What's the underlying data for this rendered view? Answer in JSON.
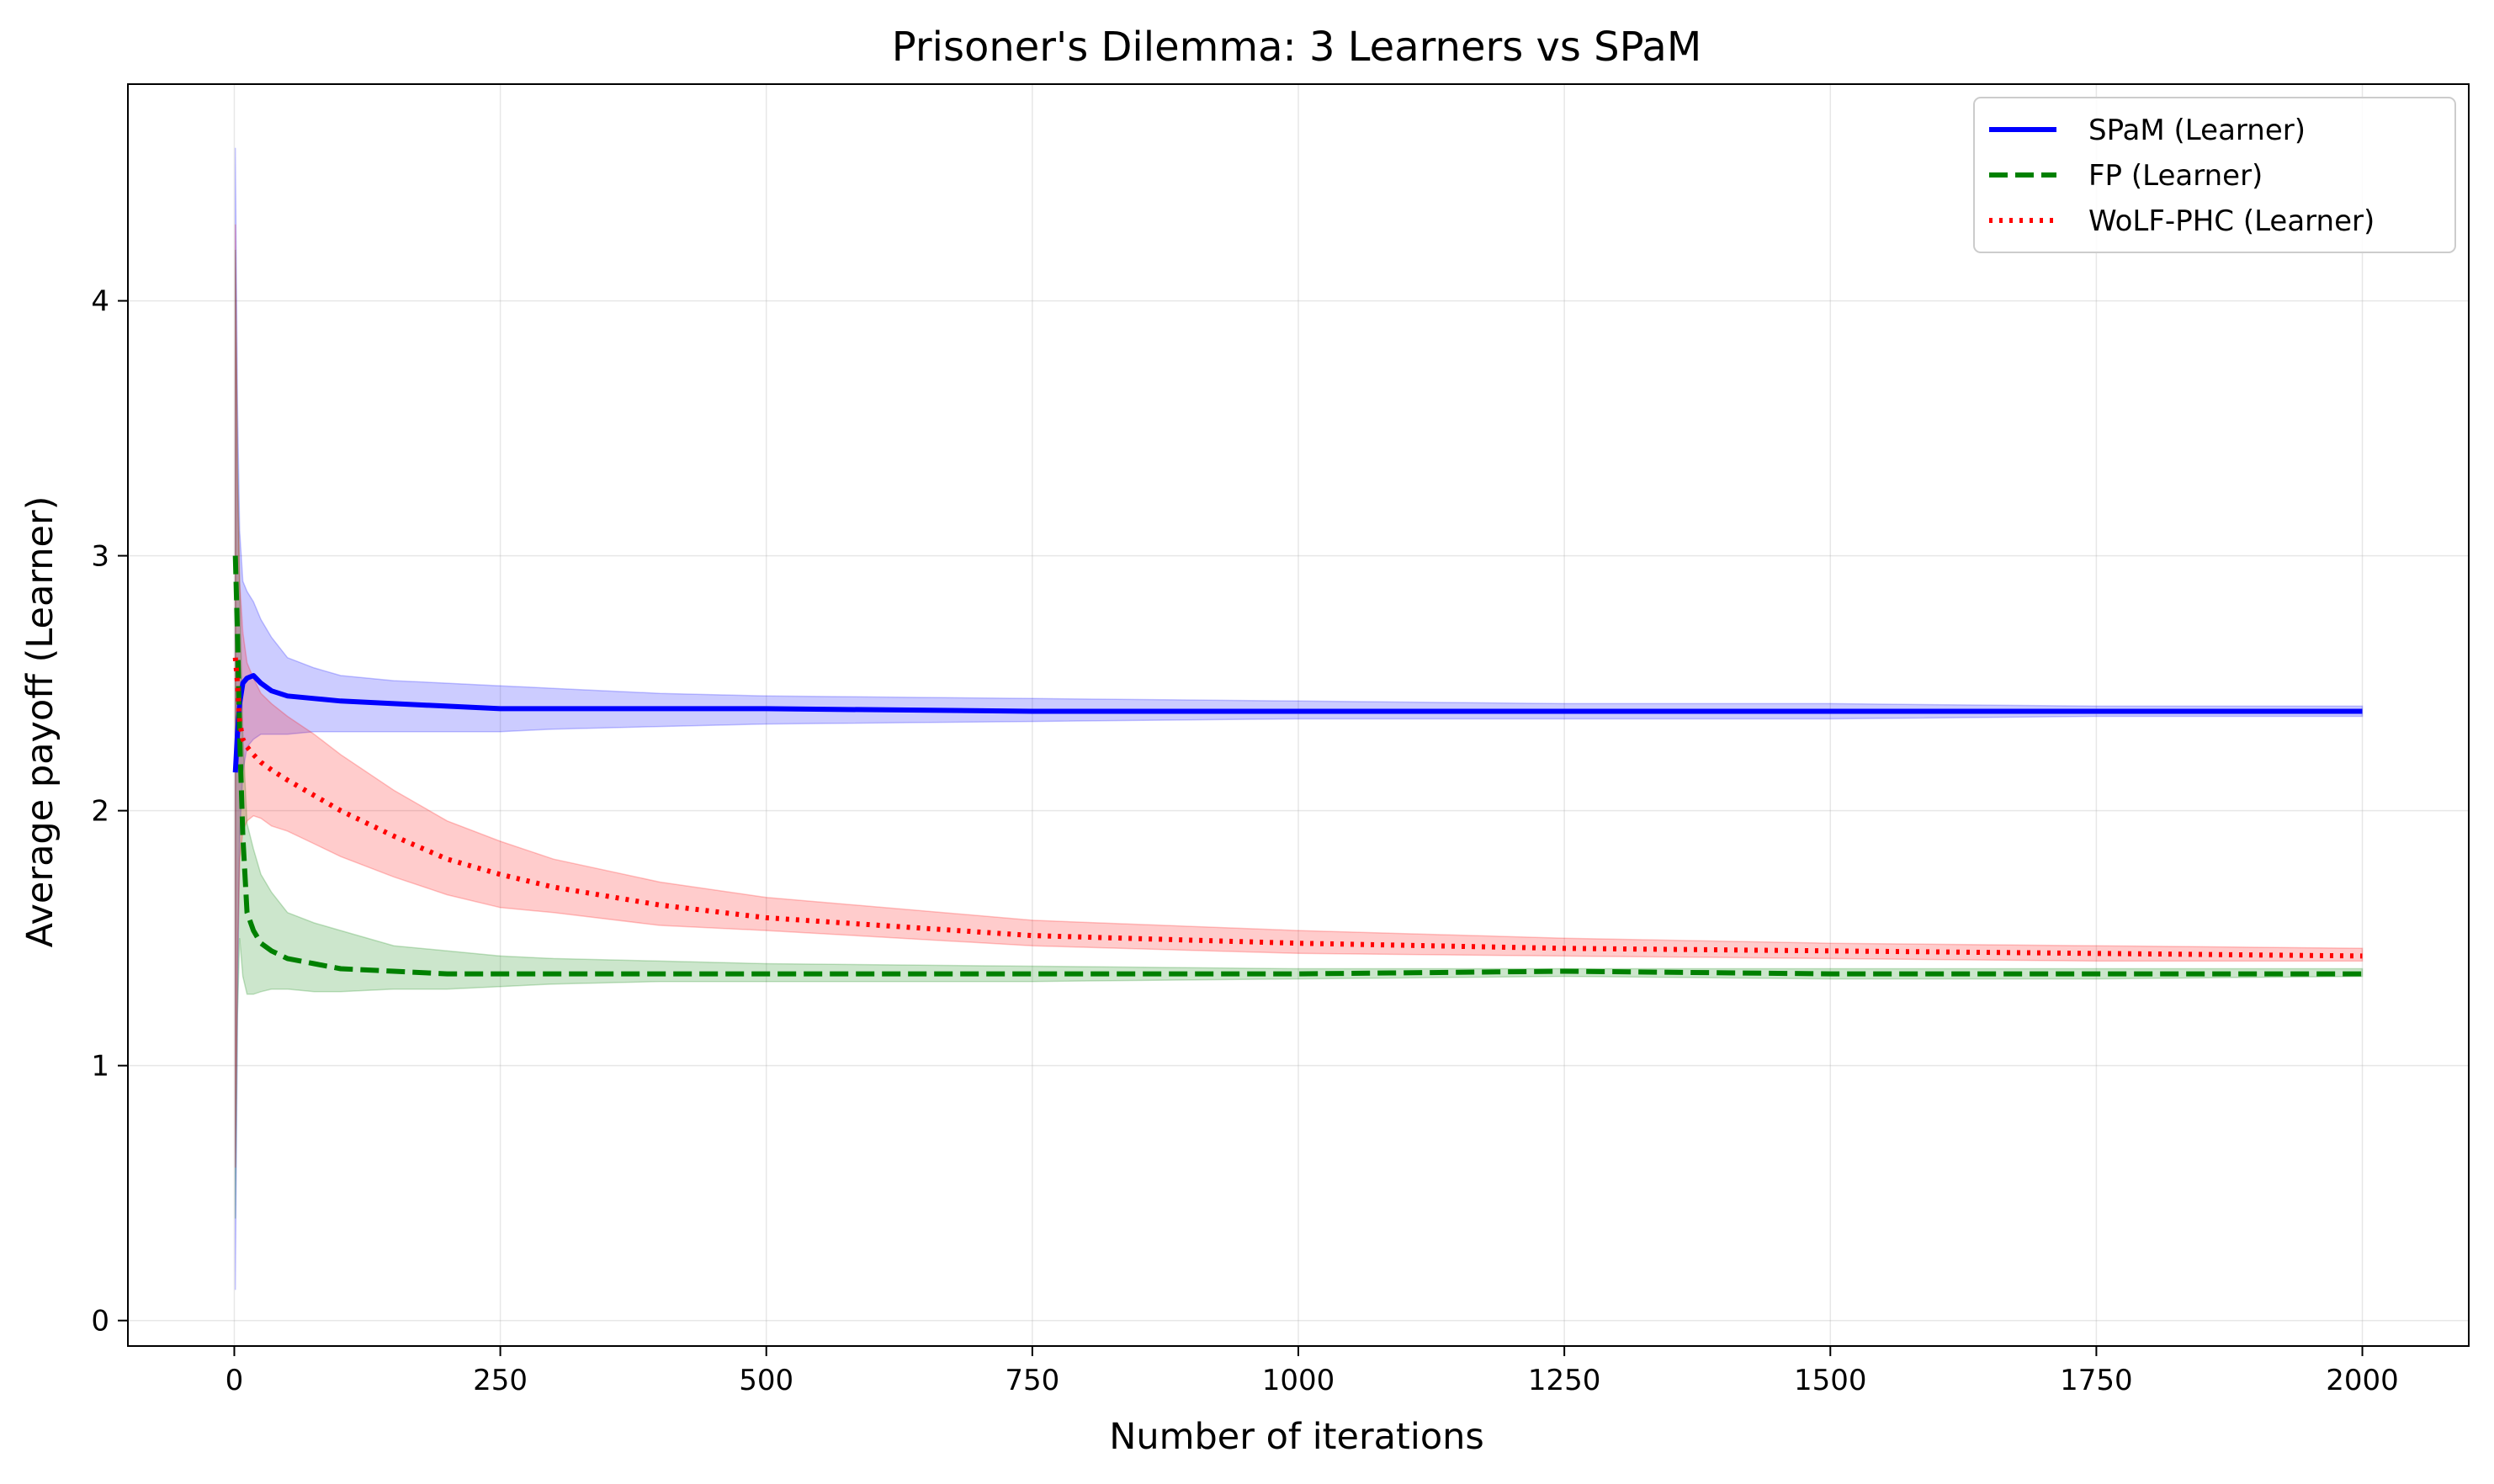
{
  "chart_data": {
    "type": "line",
    "title": "Prisoner's Dilemma: 3 Learners vs SPaM",
    "xlabel": "Number of iterations",
    "ylabel": "Average payoff (Learner)",
    "xlim": [
      -100,
      2100
    ],
    "ylim": [
      -0.1,
      4.85
    ],
    "xticks": [
      0,
      250,
      500,
      750,
      1000,
      1250,
      1500,
      1750,
      2000
    ],
    "yticks": [
      0,
      1,
      2,
      3,
      4
    ],
    "grid": true,
    "legend_position": "top-right",
    "series": [
      {
        "name": "SPaM (Learner)",
        "color": "#0000ff",
        "style": "solid",
        "x": [
          1,
          3,
          5,
          8,
          12,
          18,
          25,
          35,
          50,
          75,
          100,
          150,
          200,
          250,
          300,
          400,
          500,
          750,
          1000,
          1250,
          1500,
          1750,
          2000
        ],
        "y": [
          2.15,
          2.3,
          2.42,
          2.5,
          2.52,
          2.53,
          2.5,
          2.47,
          2.45,
          2.44,
          2.43,
          2.42,
          2.41,
          2.4,
          2.4,
          2.4,
          2.4,
          2.39,
          2.39,
          2.39,
          2.39,
          2.39,
          2.39
        ],
        "lower": [
          0.12,
          1.2,
          1.9,
          2.15,
          2.25,
          2.28,
          2.3,
          2.3,
          2.3,
          2.31,
          2.31,
          2.31,
          2.31,
          2.31,
          2.32,
          2.33,
          2.34,
          2.35,
          2.36,
          2.36,
          2.36,
          2.37,
          2.37
        ],
        "upper": [
          4.6,
          3.6,
          3.1,
          2.9,
          2.86,
          2.82,
          2.75,
          2.68,
          2.6,
          2.56,
          2.53,
          2.51,
          2.5,
          2.49,
          2.48,
          2.46,
          2.45,
          2.44,
          2.43,
          2.42,
          2.42,
          2.41,
          2.41
        ]
      },
      {
        "name": "FP (Learner)",
        "color": "#008000",
        "style": "dashed",
        "x": [
          1,
          3,
          5,
          8,
          12,
          18,
          25,
          35,
          50,
          75,
          100,
          150,
          200,
          250,
          300,
          400,
          500,
          750,
          1000,
          1250,
          1500,
          1750,
          2000
        ],
        "y": [
          3.0,
          2.7,
          2.3,
          1.9,
          1.6,
          1.53,
          1.48,
          1.45,
          1.42,
          1.4,
          1.38,
          1.37,
          1.36,
          1.36,
          1.36,
          1.36,
          1.36,
          1.36,
          1.36,
          1.37,
          1.36,
          1.36,
          1.36
        ],
        "lower": [
          0.4,
          1.2,
          1.5,
          1.35,
          1.28,
          1.28,
          1.29,
          1.3,
          1.3,
          1.29,
          1.29,
          1.3,
          1.3,
          1.31,
          1.32,
          1.33,
          1.33,
          1.33,
          1.34,
          1.35,
          1.34,
          1.34,
          1.35
        ],
        "upper": [
          4.2,
          3.4,
          2.9,
          2.3,
          1.95,
          1.85,
          1.75,
          1.68,
          1.6,
          1.56,
          1.53,
          1.47,
          1.45,
          1.43,
          1.42,
          1.41,
          1.4,
          1.39,
          1.38,
          1.38,
          1.38,
          1.38,
          1.38
        ]
      },
      {
        "name": "WoLF-PHC (Learner)",
        "color": "#ff0000",
        "style": "dotted",
        "x": [
          1,
          3,
          5,
          8,
          12,
          18,
          25,
          35,
          50,
          75,
          100,
          150,
          200,
          250,
          300,
          400,
          500,
          750,
          1000,
          1250,
          1500,
          1750,
          2000
        ],
        "y": [
          2.6,
          2.5,
          2.35,
          2.28,
          2.25,
          2.22,
          2.19,
          2.16,
          2.12,
          2.06,
          2.0,
          1.9,
          1.81,
          1.75,
          1.7,
          1.63,
          1.58,
          1.51,
          1.48,
          1.46,
          1.45,
          1.44,
          1.43
        ],
        "lower": [
          0.6,
          1.4,
          1.8,
          1.92,
          1.96,
          1.98,
          1.97,
          1.94,
          1.92,
          1.87,
          1.82,
          1.74,
          1.67,
          1.62,
          1.6,
          1.55,
          1.53,
          1.47,
          1.44,
          1.43,
          1.42,
          1.41,
          1.41
        ],
        "upper": [
          4.3,
          3.3,
          2.9,
          2.7,
          2.58,
          2.52,
          2.46,
          2.42,
          2.37,
          2.3,
          2.22,
          2.08,
          1.96,
          1.88,
          1.81,
          1.72,
          1.66,
          1.57,
          1.53,
          1.5,
          1.48,
          1.47,
          1.46
        ]
      }
    ]
  }
}
